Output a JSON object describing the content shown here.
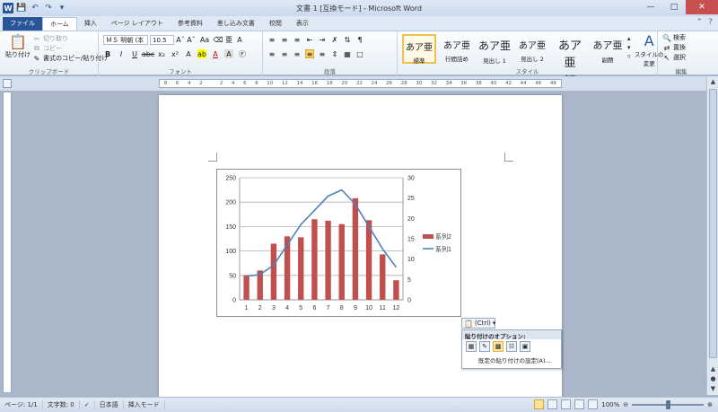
{
  "title_bar": {
    "title": "文書 1 [互換モード] - Microsoft Word",
    "quick_access": [
      "word-logo-icon",
      "save-icon",
      "undo-icon",
      "redo-icon",
      "customize-icon"
    ]
  },
  "tabs": [
    "ファイル",
    "ホーム",
    "挿入",
    "ページ レイアウト",
    "参考資料",
    "差し込み文書",
    "校閲",
    "表示"
  ],
  "ribbon": {
    "clipboard": {
      "label": "クリップボード",
      "paste": "貼り付け",
      "cut": "切り取り",
      "copy": "コピー",
      "format_painter": "書式のコピー/貼り付け"
    },
    "font": {
      "label": "フォント",
      "font_name": "ＭＳ 明朝 (本",
      "font_size": "10.5"
    },
    "paragraph": {
      "label": "段落"
    },
    "styles": {
      "label": "スタイル",
      "items": [
        {
          "sample": "あア亜",
          "name": "標準"
        },
        {
          "sample": "あア亜",
          "name": "行間詰め"
        },
        {
          "sample": "あア亜",
          "name": "見出し 1"
        },
        {
          "sample": "あア亜",
          "name": "見出し 2"
        },
        {
          "sample": "あア亜",
          "name": "表題"
        },
        {
          "sample": "あア亜",
          "name": "副題"
        }
      ],
      "change": "スタイルの\n変更"
    },
    "editing": {
      "label": "編集",
      "find": "検索",
      "replace": "置換",
      "select": "選択"
    }
  },
  "ruler_ticks": [
    "8",
    "6",
    "4",
    "2",
    "",
    "2",
    "4",
    "6",
    "8",
    "10",
    "12",
    "14",
    "16",
    "18",
    "20",
    "22",
    "24",
    "26",
    "28",
    "30",
    "32",
    "34",
    "36",
    "38",
    "40",
    "42",
    "44",
    "46",
    "48"
  ],
  "chart_data": {
    "type": "bar",
    "categories": [
      "1",
      "2",
      "3",
      "4",
      "5",
      "6",
      "7",
      "8",
      "9",
      "10",
      "11",
      "12"
    ],
    "series": [
      {
        "name": "系列2",
        "type": "bar",
        "axis": "left",
        "color": "#c0504d",
        "values": [
          50,
          60,
          115,
          130,
          128,
          165,
          162,
          155,
          208,
          163,
          93,
          40
        ]
      },
      {
        "name": "系列1",
        "type": "line",
        "axis": "right",
        "color": "#4f81bd",
        "values": [
          5.8,
          6.2,
          8.5,
          13.5,
          18.5,
          22,
          25.5,
          27,
          23.5,
          18,
          12.5,
          8
        ]
      }
    ],
    "y_left": {
      "min": 0,
      "max": 250,
      "ticks": [
        0,
        50,
        100,
        150,
        200,
        250
      ]
    },
    "y_right": {
      "min": 0,
      "max": 30,
      "ticks": [
        0,
        5,
        10,
        15,
        20,
        25,
        30
      ]
    },
    "legend_position": "right",
    "grid": true
  },
  "paste_options": {
    "button_label": "(Ctrl)",
    "header": "貼り付けのオプション:",
    "default_label": "既定の貼り付けの設定(A)..."
  },
  "status_bar": {
    "page": "ページ: 1/1",
    "words": "文字数: 0",
    "language": "日本語",
    "mode": "挿入モード",
    "zoom": "100%"
  },
  "colors": {
    "file_tab": "#2a5699",
    "bar": "#c0504d",
    "line": "#4f81bd"
  }
}
